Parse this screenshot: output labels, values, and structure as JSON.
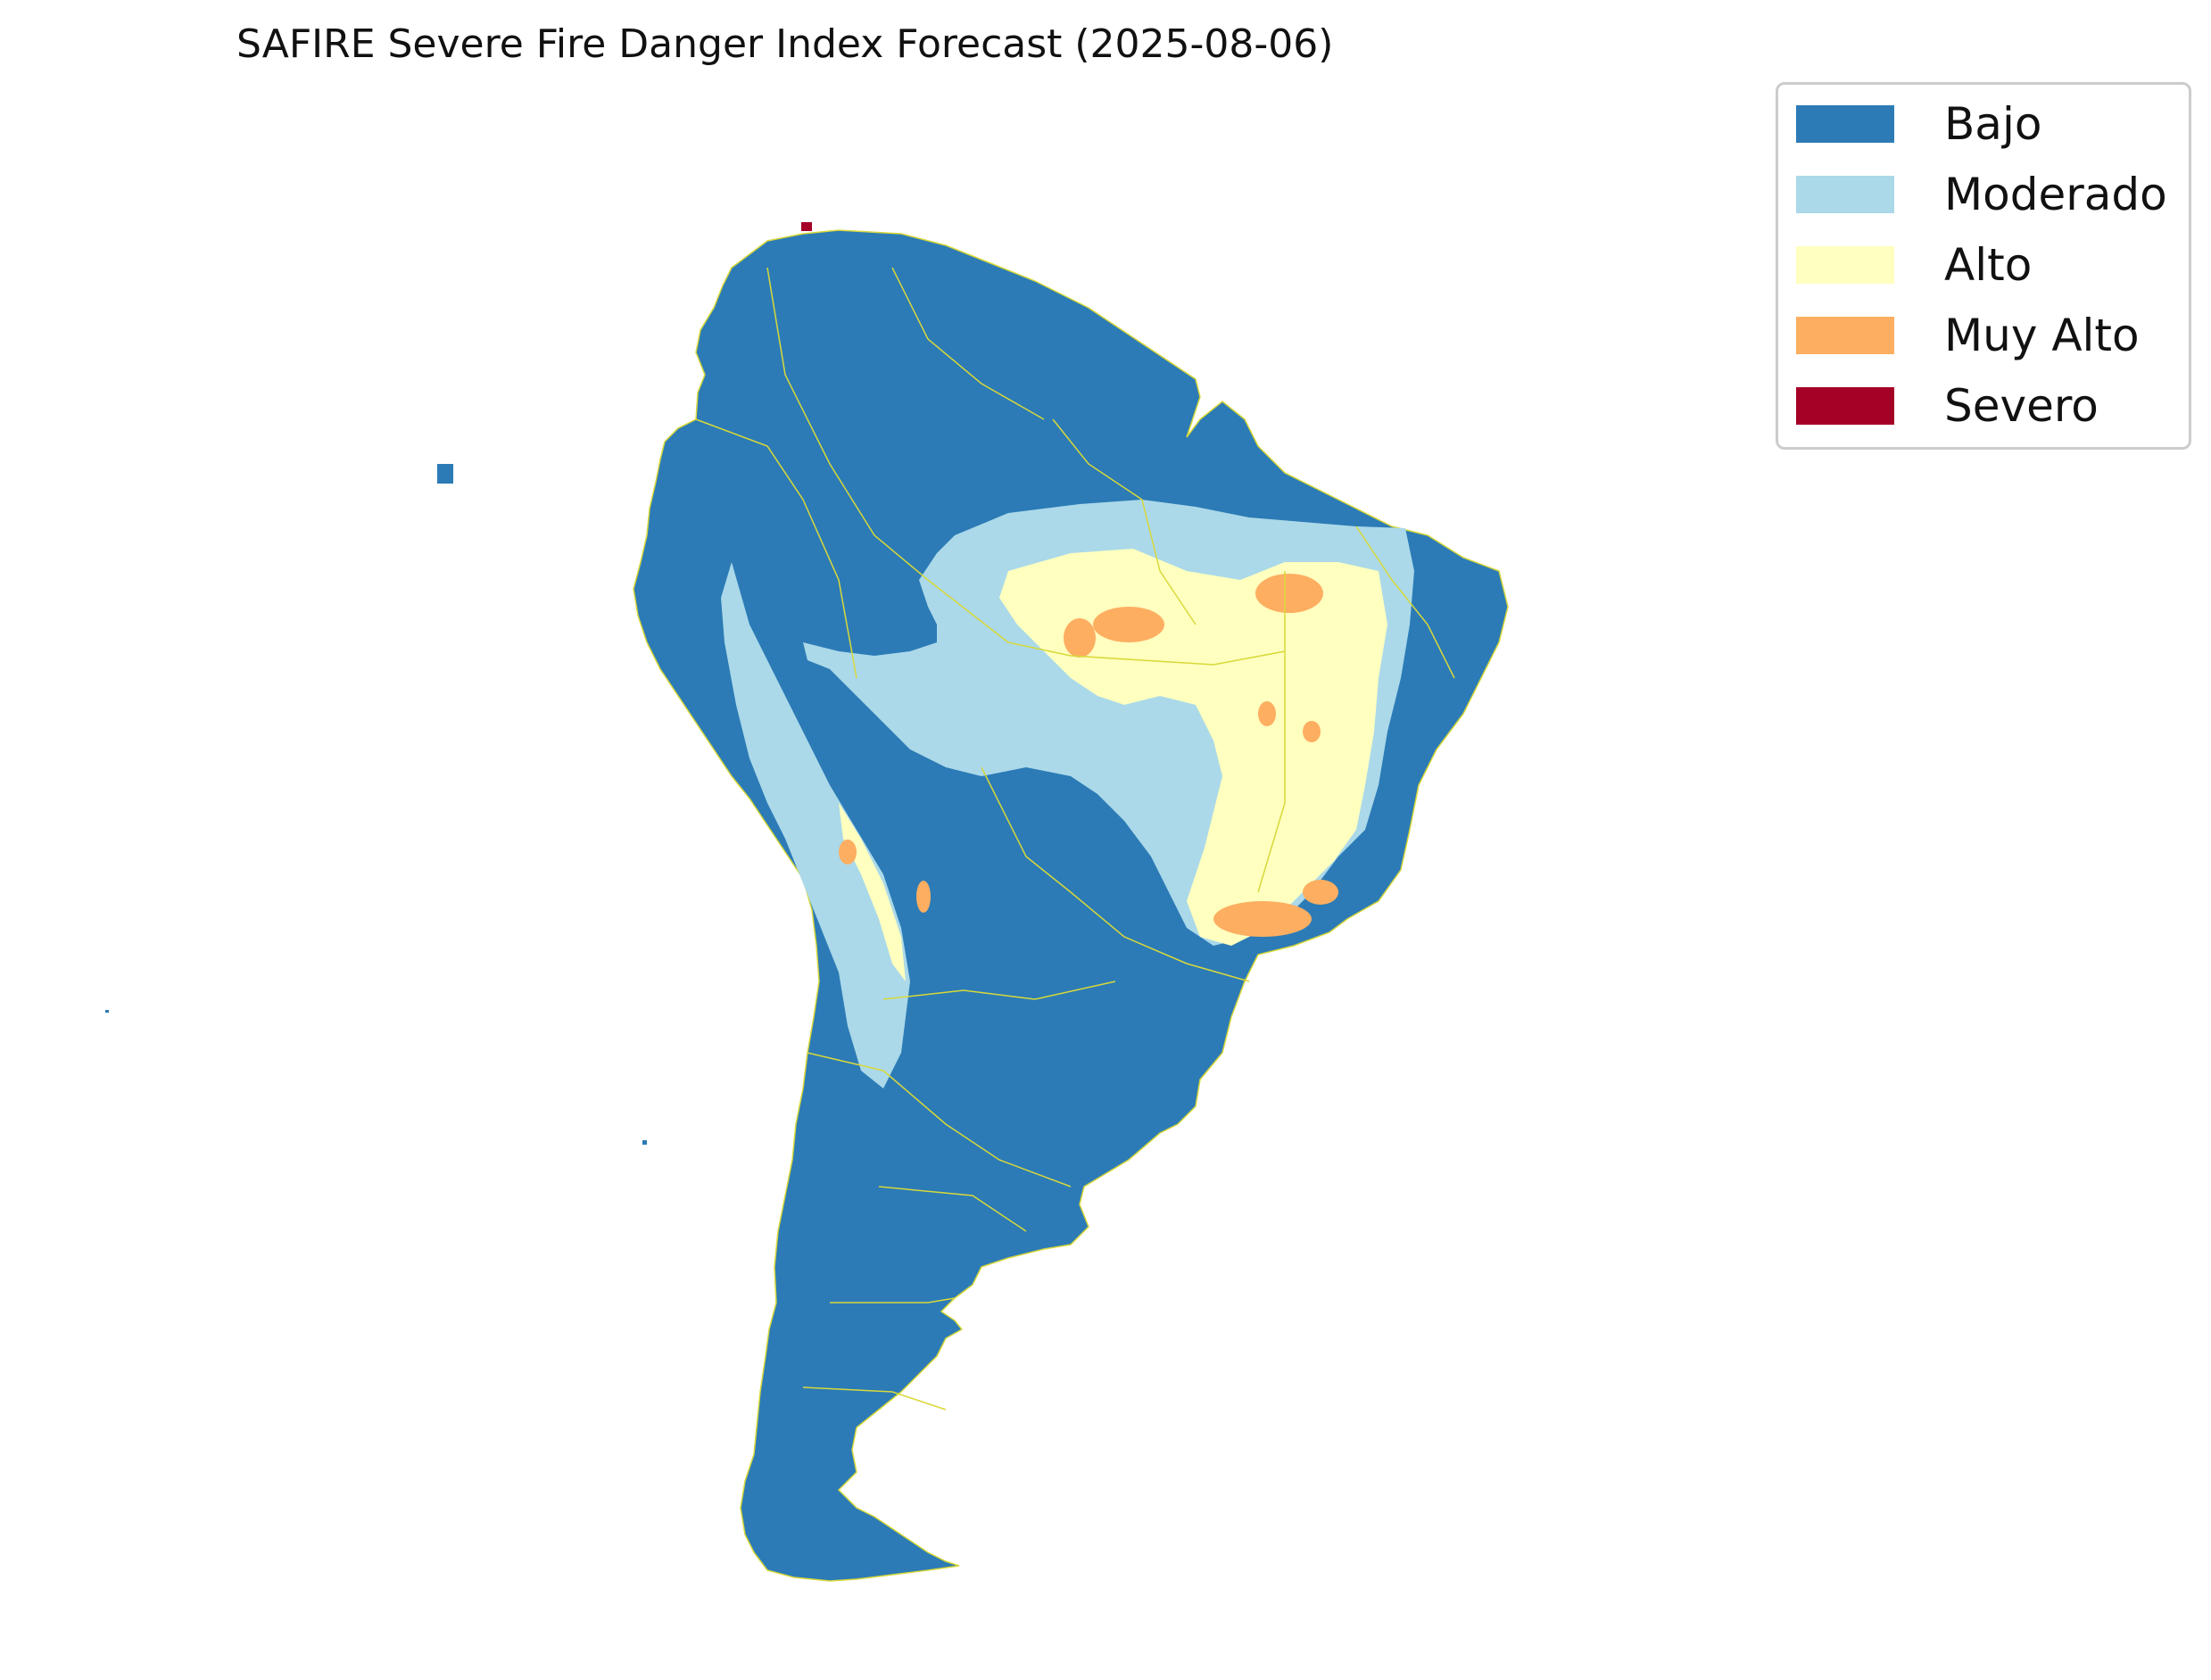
{
  "title": "SAFIRE Severe Fire Danger Index Forecast (2025-08-06)",
  "legend": {
    "items": [
      {
        "label": "Bajo",
        "color": "#2c7bb6"
      },
      {
        "label": "Moderado",
        "color": "#abd9e9"
      },
      {
        "label": "Alto",
        "color": "#ffffbf"
      },
      {
        "label": "Muy Alto",
        "color": "#fdae61"
      },
      {
        "label": "Severo",
        "color": "#a50026"
      }
    ]
  },
  "colors": {
    "border": "#e0e04a",
    "background": "#ffffff"
  }
}
